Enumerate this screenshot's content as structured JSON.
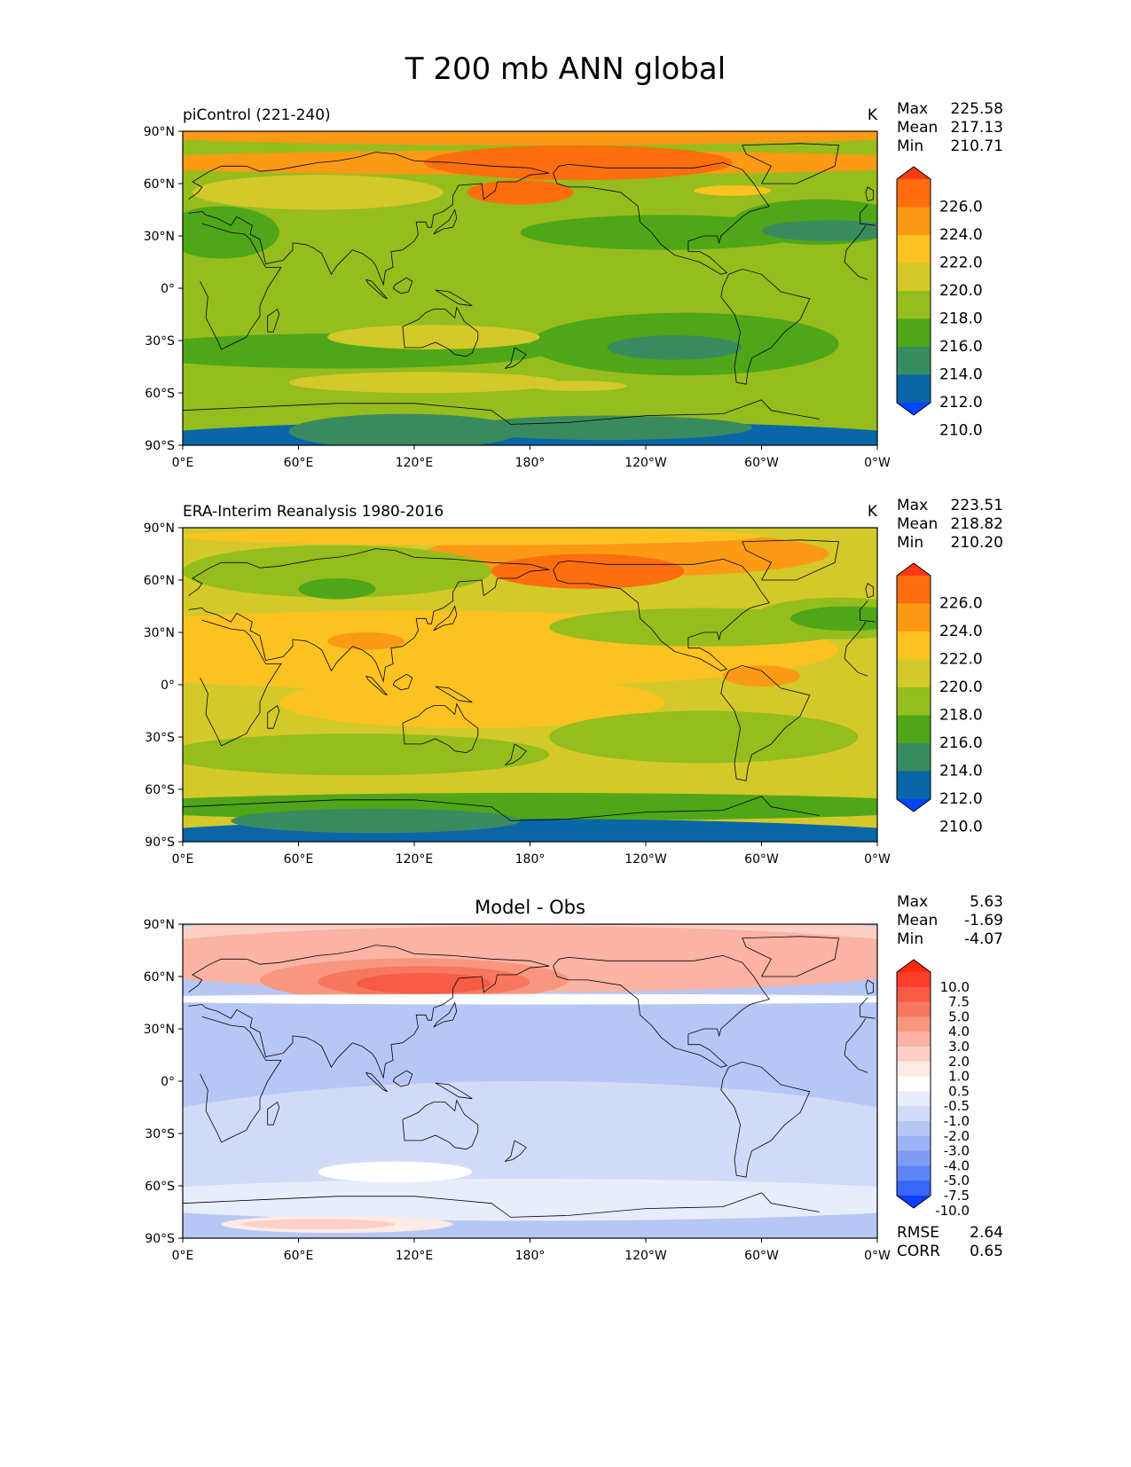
{
  "figure": {
    "title": "T 200 mb ANN global"
  },
  "axes": {
    "x_ticks": [
      "0°E",
      "60°E",
      "120°E",
      "180°",
      "120°W",
      "60°W",
      "0°W"
    ],
    "y_ticks": [
      "90°N",
      "60°N",
      "30°N",
      "0°",
      "30°S",
      "60°S",
      "90°S"
    ]
  },
  "chart_data": [
    {
      "type": "heatmap",
      "panel": "top",
      "title": "piControl (221-240)",
      "units": "K",
      "xlim": [
        0,
        360
      ],
      "ylim": [
        -90,
        90
      ],
      "stats": [
        {
          "label": "Max",
          "value": "225.58"
        },
        {
          "label": "Mean",
          "value": "217.13"
        },
        {
          "label": "Min",
          "value": "210.71"
        }
      ],
      "colorbar": {
        "labels": [
          "226.0",
          "224.0",
          "222.0",
          "220.0",
          "218.0",
          "216.0",
          "214.0",
          "212.0",
          "210.0"
        ],
        "colors": [
          "#ff3a14",
          "#fd6e0f",
          "#fc9a15",
          "#fcc222",
          "#d3c92a",
          "#95bd1d",
          "#4fa619",
          "#3a8a60",
          "#0967a8",
          "#0046ff"
        ],
        "extend": "both"
      }
    },
    {
      "type": "heatmap",
      "panel": "middle",
      "title": "ERA-Interim Reanalysis 1980-2016",
      "units": "K",
      "xlim": [
        0,
        360
      ],
      "ylim": [
        -90,
        90
      ],
      "stats": [
        {
          "label": "Max",
          "value": "223.51"
        },
        {
          "label": "Mean",
          "value": "218.82"
        },
        {
          "label": "Min",
          "value": "210.20"
        }
      ],
      "colorbar": {
        "labels": [
          "226.0",
          "224.0",
          "222.0",
          "220.0",
          "218.0",
          "216.0",
          "214.0",
          "212.0",
          "210.0"
        ],
        "colors": [
          "#ff3a14",
          "#fd6e0f",
          "#fc9a15",
          "#fcc222",
          "#d3c92a",
          "#95bd1d",
          "#4fa619",
          "#3a8a60",
          "#0967a8",
          "#0046ff"
        ],
        "extend": "both"
      }
    },
    {
      "type": "heatmap",
      "panel": "bottom",
      "title": "Model - Obs",
      "units": "",
      "xlim": [
        0,
        360
      ],
      "ylim": [
        -90,
        90
      ],
      "stats": [
        {
          "label": "Max",
          "value": "5.63"
        },
        {
          "label": "Mean",
          "value": "-1.69"
        },
        {
          "label": "Min",
          "value": "-4.07"
        }
      ],
      "colorbar": {
        "labels": [
          "10.0",
          "7.5",
          "5.0",
          "4.0",
          "3.0",
          "2.0",
          "1.0",
          "0.5",
          "-0.5",
          "-1.0",
          "-2.0",
          "-3.0",
          "-4.0",
          "-5.0",
          "-7.5",
          "-10.0"
        ],
        "colors": [
          "#ff2a10",
          "#fb3e2c",
          "#f55b45",
          "#f7785f",
          "#f99680",
          "#fbb3a3",
          "#fdd0c6",
          "#feebe6",
          "#ffffff",
          "#e8edfb",
          "#d1dbf8",
          "#b6c7f6",
          "#9bb2f4",
          "#7e9cf3",
          "#5e85f5",
          "#3866f7",
          "#0a3fff"
        ],
        "extend": "both",
        "rmse": {
          "label": "RMSE",
          "value": "2.64"
        },
        "corr": {
          "label": "CORR",
          "value": "0.65"
        }
      }
    }
  ]
}
